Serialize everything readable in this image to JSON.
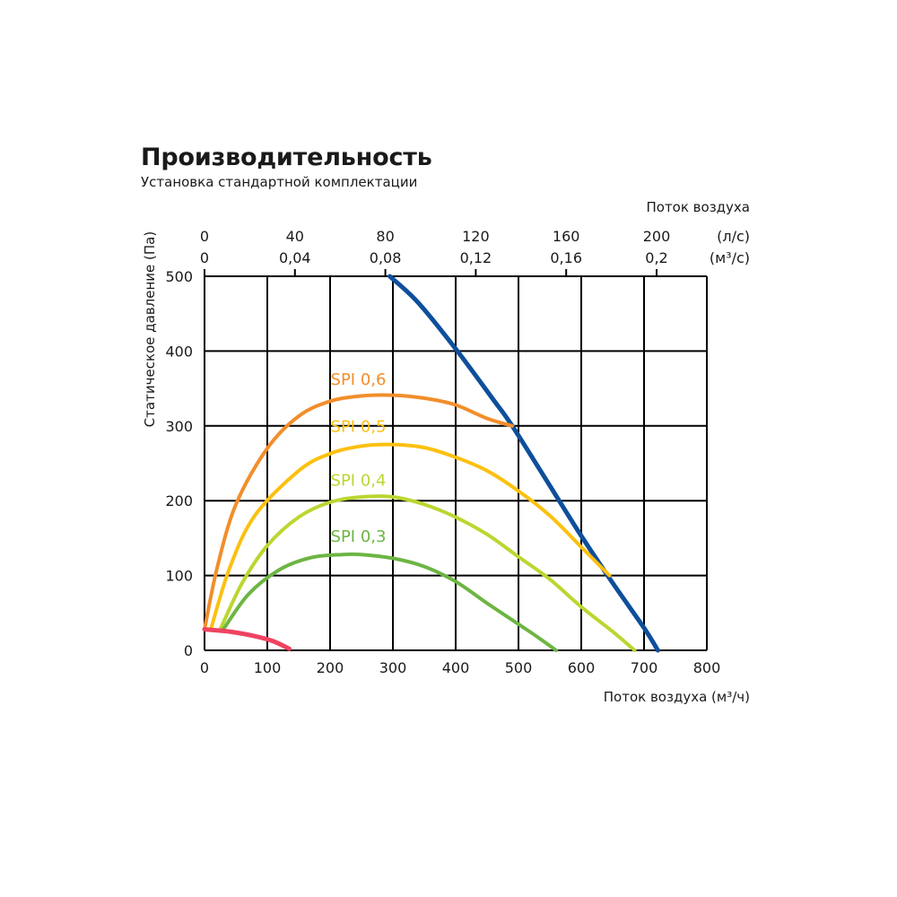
{
  "chart_data": {
    "type": "line",
    "title": "Производительность",
    "subtitle": "Установка стандартной комплектации",
    "xlabel": "Поток воздуха (м³/ч)",
    "ylabel": "Статическое давление (Па)",
    "xlim": [
      0,
      800
    ],
    "ylim": [
      0,
      500
    ],
    "grid": true,
    "x_ticks": [
      "0",
      "100",
      "200",
      "300",
      "400",
      "500",
      "600",
      "700",
      "800"
    ],
    "y_ticks": [
      "0",
      "100",
      "200",
      "300",
      "400",
      "500"
    ],
    "top_axis": {
      "label": "Поток воздуха",
      "ls": {
        "unit": "(л/с)",
        "ticks": [
          {
            "value": 0,
            "label": "0"
          },
          {
            "value": 40,
            "label": "40"
          },
          {
            "value": 80,
            "label": "80"
          },
          {
            "value": 120,
            "label": "120"
          },
          {
            "value": 160,
            "label": "160"
          },
          {
            "value": 200,
            "label": "200"
          }
        ]
      },
      "m3s": {
        "unit": "(м³/с)",
        "ticks": [
          {
            "value": 0,
            "label": "0"
          },
          {
            "value": 0.04,
            "label": "0,04"
          },
          {
            "value": 0.08,
            "label": "0,08"
          },
          {
            "value": 0.12,
            "label": "0,12"
          },
          {
            "value": 0.16,
            "label": "0,16"
          },
          {
            "value": 0.2,
            "label": "0,2"
          }
        ]
      }
    },
    "series": [
      {
        "color": "#0e4f9b",
        "width": 5,
        "points": [
          [
            295,
            500
          ],
          [
            340,
            465
          ],
          [
            400,
            403
          ],
          [
            460,
            335
          ],
          [
            490,
            300
          ],
          [
            550,
            220
          ],
          [
            600,
            153
          ],
          [
            650,
            90
          ],
          [
            700,
            30
          ],
          [
            722,
            0
          ]
        ]
      },
      {
        "name": "SPI 0,6",
        "color": "#f28e2b",
        "width": 4,
        "points": [
          [
            0,
            28
          ],
          [
            20,
            110
          ],
          [
            50,
            195
          ],
          [
            100,
            270
          ],
          [
            150,
            313
          ],
          [
            200,
            333
          ],
          [
            250,
            340
          ],
          [
            300,
            341
          ],
          [
            350,
            337
          ],
          [
            400,
            328
          ],
          [
            450,
            310
          ],
          [
            490,
            300
          ]
        ]
      },
      {
        "name": "SPI 0,5",
        "color": "#fcc010",
        "width": 4,
        "points": [
          [
            10,
            28
          ],
          [
            40,
            110
          ],
          [
            80,
            180
          ],
          [
            150,
            240
          ],
          [
            200,
            263
          ],
          [
            250,
            273
          ],
          [
            300,
            275
          ],
          [
            350,
            271
          ],
          [
            400,
            258
          ],
          [
            450,
            240
          ],
          [
            500,
            213
          ],
          [
            550,
            180
          ],
          [
            600,
            138
          ],
          [
            645,
            100
          ]
        ]
      },
      {
        "name": "SPI 0,4",
        "color": "#bcd630",
        "width": 4,
        "points": [
          [
            25,
            28
          ],
          [
            60,
            90
          ],
          [
            100,
            140
          ],
          [
            150,
            178
          ],
          [
            200,
            198
          ],
          [
            250,
            205
          ],
          [
            300,
            205
          ],
          [
            350,
            195
          ],
          [
            400,
            178
          ],
          [
            450,
            155
          ],
          [
            500,
            125
          ],
          [
            550,
            95
          ],
          [
            600,
            58
          ],
          [
            650,
            25
          ],
          [
            685,
            0
          ]
        ]
      },
      {
        "name": "SPI 0,3",
        "color": "#6db543",
        "width": 4,
        "points": [
          [
            30,
            28
          ],
          [
            70,
            75
          ],
          [
            120,
            108
          ],
          [
            170,
            124
          ],
          [
            220,
            128
          ],
          [
            250,
            128
          ],
          [
            300,
            123
          ],
          [
            350,
            112
          ],
          [
            400,
            92
          ],
          [
            450,
            63
          ],
          [
            500,
            35
          ],
          [
            530,
            18
          ],
          [
            560,
            0
          ]
        ]
      },
      {
        "color": "#ef4360",
        "width": 5,
        "points": [
          [
            0,
            28
          ],
          [
            40,
            25
          ],
          [
            80,
            19
          ],
          [
            110,
            12
          ],
          [
            135,
            2
          ]
        ]
      }
    ],
    "annotations": [
      {
        "text": "SPI 0,6",
        "x": 245,
        "y": 355,
        "color": "#f28e2b"
      },
      {
        "text": "SPI 0,5",
        "x": 245,
        "y": 292,
        "color": "#fcc010"
      },
      {
        "text": "SPI 0,4",
        "x": 245,
        "y": 220,
        "color": "#bcd630"
      },
      {
        "text": "SPI 0,3",
        "x": 245,
        "y": 145,
        "color": "#6db543"
      }
    ]
  }
}
